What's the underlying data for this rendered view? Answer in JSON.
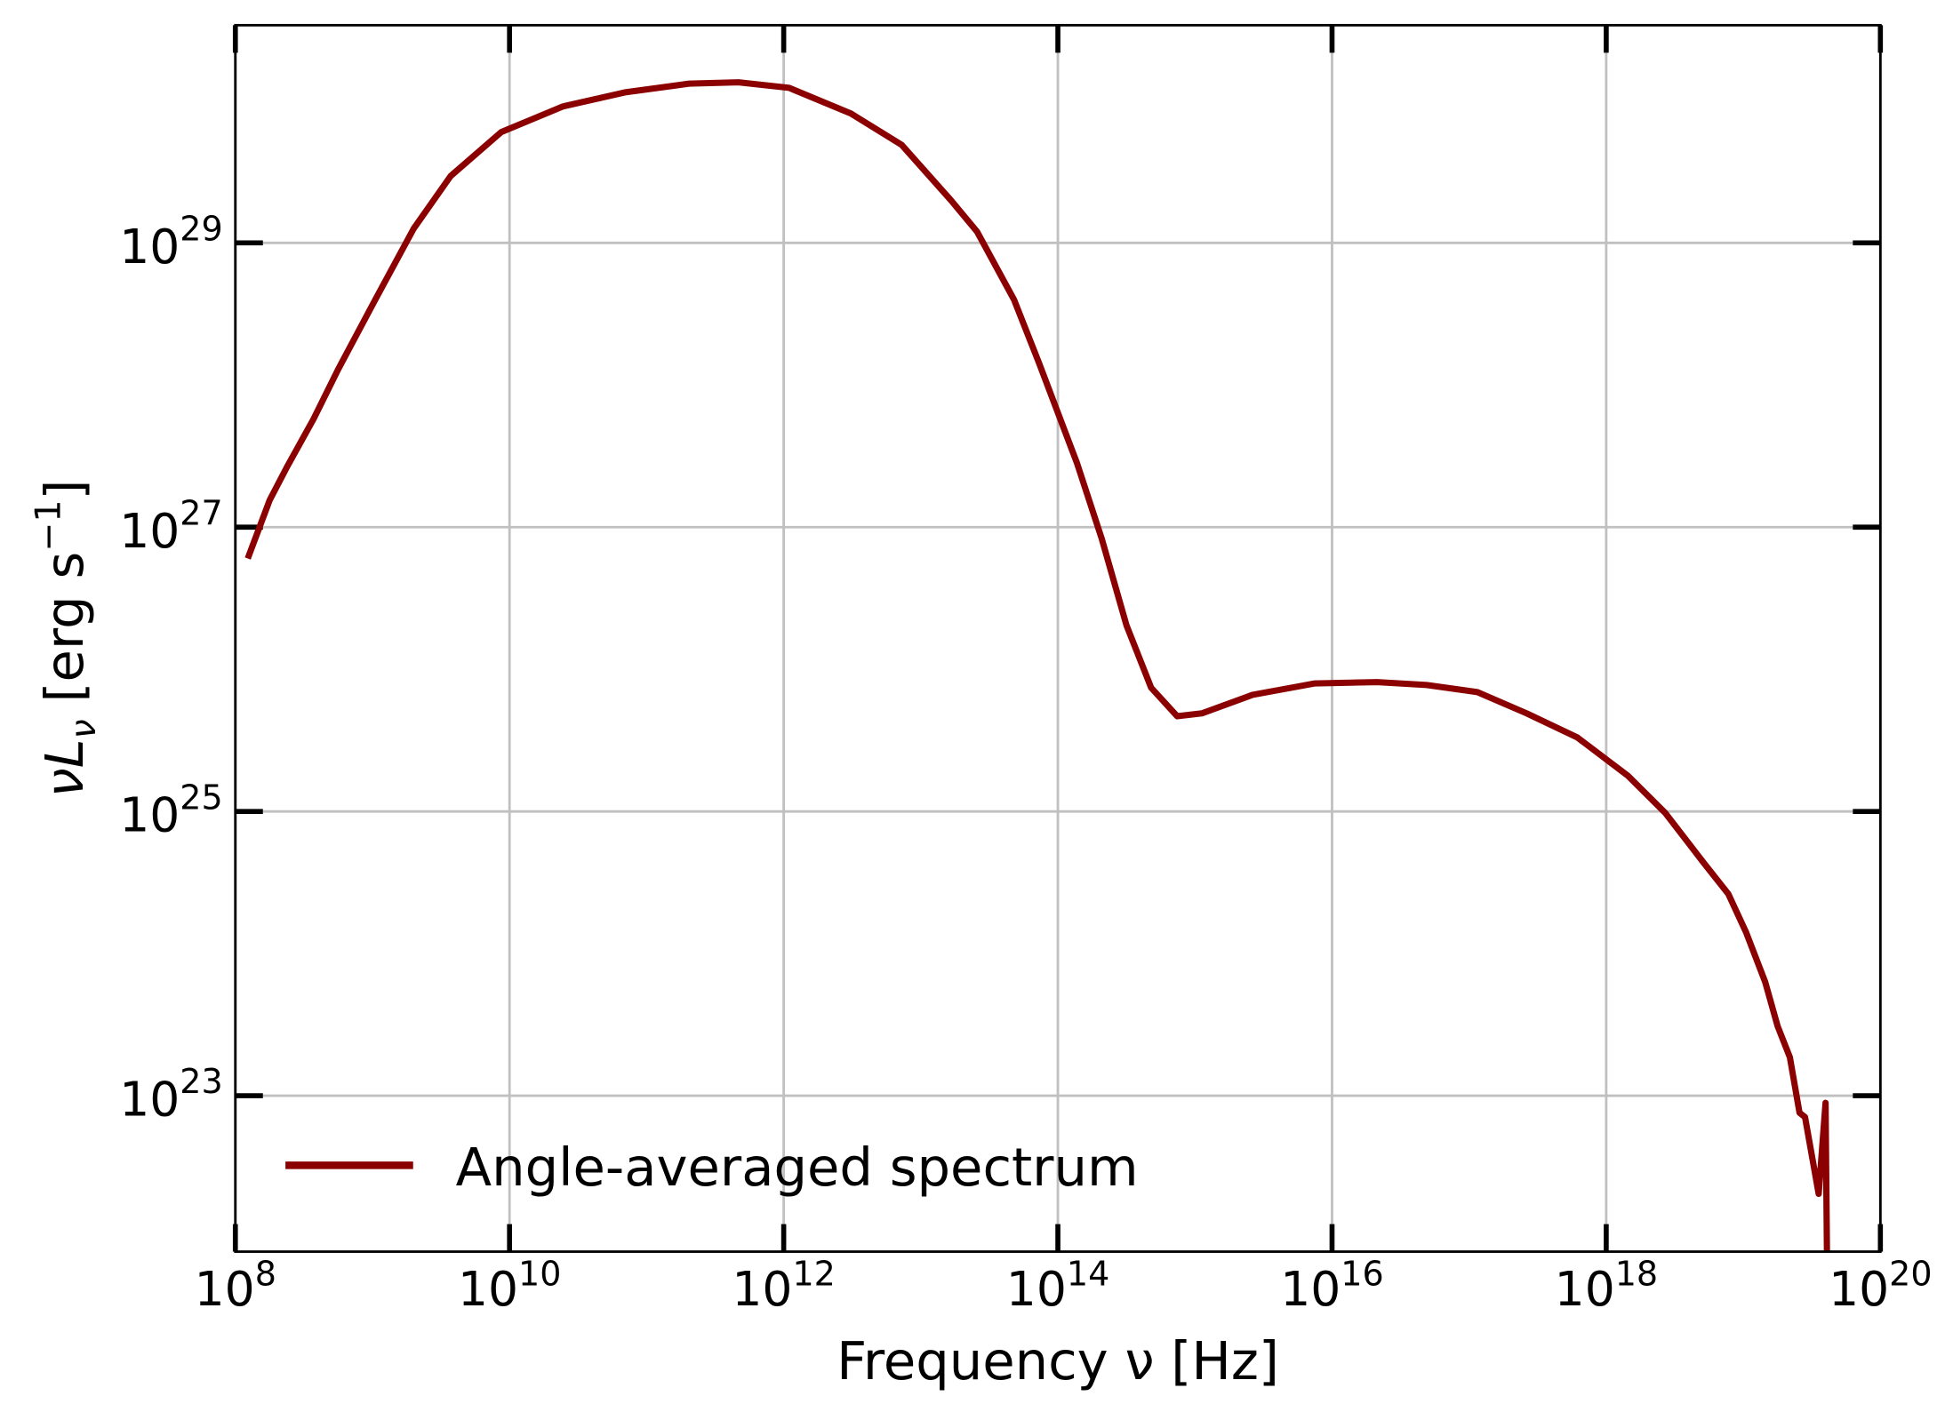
{
  "chart_data": {
    "type": "line",
    "title": "",
    "xlabel": "Frequency ν [Hz]",
    "ylabel_main": "νL",
    "ylabel_sub": "ν",
    "ylabel_unit": " [erg s",
    "ylabel_exp": "−1",
    "ylabel_close": "]",
    "xscale": "log",
    "yscale": "log",
    "xlim": [
      100000000.0,
      1e+20
    ],
    "ylim": [
      8e+21,
      3.4e+30
    ],
    "grid": true,
    "legend_position": "lower-left",
    "x_ticks": [
      {
        "base": "10",
        "exp": "8",
        "value": 100000000.0
      },
      {
        "base": "10",
        "exp": "10",
        "value": 10000000000.0
      },
      {
        "base": "10",
        "exp": "12",
        "value": 1000000000000.0
      },
      {
        "base": "10",
        "exp": "14",
        "value": 100000000000000.0
      },
      {
        "base": "10",
        "exp": "16",
        "value": 1e+16
      },
      {
        "base": "10",
        "exp": "18",
        "value": 1e+18
      },
      {
        "base": "10",
        "exp": "20",
        "value": 1e+20
      }
    ],
    "y_ticks": [
      {
        "base": "10",
        "exp": "23",
        "value": 1e+23
      },
      {
        "base": "10",
        "exp": "25",
        "value": 1e+25
      },
      {
        "base": "10",
        "exp": "27",
        "value": 1e+27
      },
      {
        "base": "10",
        "exp": "29",
        "value": 1e+29
      }
    ],
    "series": [
      {
        "name": "Angle-averaged spectrum",
        "color": "#8b0000",
        "log10_x": [
          8.09,
          8.25,
          8.38,
          8.57,
          8.75,
          9.02,
          9.3,
          9.57,
          9.94,
          10.39,
          10.85,
          11.31,
          11.67,
          12.04,
          12.49,
          12.86,
          13.22,
          13.41,
          13.68,
          13.86,
          14.14,
          14.32,
          14.5,
          14.68,
          14.87,
          15.05,
          15.42,
          15.87,
          16.33,
          16.69,
          17.06,
          17.42,
          17.79,
          18.16,
          18.43,
          18.71,
          18.89,
          19.02,
          19.16,
          19.25,
          19.34,
          19.41,
          19.45,
          19.55,
          19.6,
          19.61
        ],
        "log10_y": [
          26.78,
          27.19,
          27.43,
          27.76,
          28.11,
          28.6,
          29.1,
          29.47,
          29.78,
          29.96,
          30.06,
          30.12,
          30.13,
          30.09,
          29.91,
          29.69,
          29.3,
          29.08,
          28.6,
          28.16,
          27.45,
          26.92,
          26.31,
          25.87,
          25.67,
          25.69,
          25.82,
          25.9,
          25.91,
          25.89,
          25.84,
          25.69,
          25.52,
          25.25,
          24.99,
          24.64,
          24.42,
          24.15,
          23.8,
          23.49,
          23.27,
          22.88,
          22.85,
          22.31,
          22.95,
          21.9
        ]
      }
    ]
  }
}
